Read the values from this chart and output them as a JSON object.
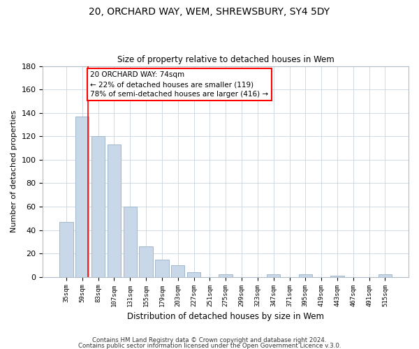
{
  "title": "20, ORCHARD WAY, WEM, SHREWSBURY, SY4 5DY",
  "subtitle": "Size of property relative to detached houses in Wem",
  "xlabel": "Distribution of detached houses by size in Wem",
  "ylabel": "Number of detached properties",
  "bar_labels": [
    "35sqm",
    "59sqm",
    "83sqm",
    "107sqm",
    "131sqm",
    "155sqm",
    "179sqm",
    "203sqm",
    "227sqm",
    "251sqm",
    "275sqm",
    "299sqm",
    "323sqm",
    "347sqm",
    "371sqm",
    "395sqm",
    "419sqm",
    "443sqm",
    "467sqm",
    "491sqm",
    "515sqm"
  ],
  "bar_values": [
    47,
    137,
    120,
    113,
    60,
    26,
    15,
    10,
    4,
    0,
    2,
    0,
    0,
    2,
    0,
    2,
    0,
    1,
    0,
    0,
    2
  ],
  "bar_color": "#c8d8e8",
  "bar_edge_color": "#a0b8cc",
  "red_line_x": 1.35,
  "ylim": [
    0,
    180
  ],
  "yticks": [
    0,
    20,
    40,
    60,
    80,
    100,
    120,
    140,
    160,
    180
  ],
  "annotation_line1": "20 ORCHARD WAY: 74sqm",
  "annotation_line2": "← 22% of detached houses are smaller (119)",
  "annotation_line3": "78% of semi-detached houses are larger (416) →",
  "footer1": "Contains HM Land Registry data © Crown copyright and database right 2024.",
  "footer2": "Contains public sector information licensed under the Open Government Licence v.3.0.",
  "background_color": "#ffffff",
  "grid_color": "#c8d4e0"
}
